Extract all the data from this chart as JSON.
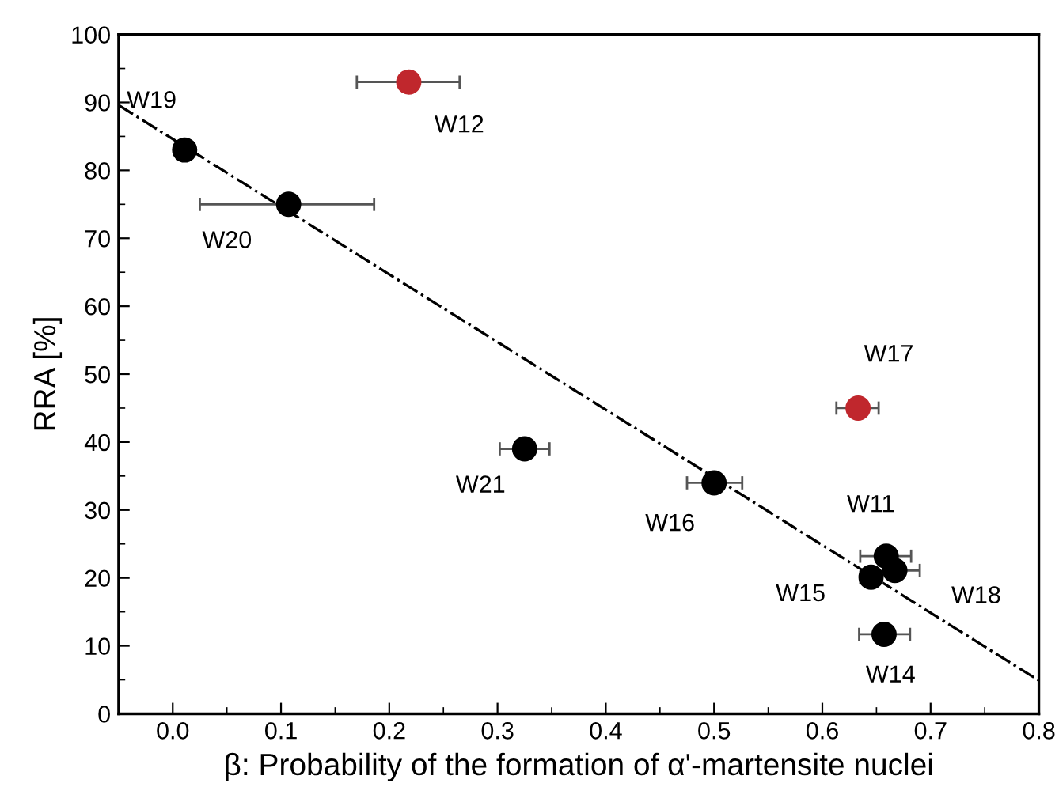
{
  "chart_data": {
    "type": "scatter",
    "xlabel": "β: Probability of the formation of α'-martensite nuclei",
    "ylabel": "RRA [%]",
    "xlim": [
      -0.05,
      0.8
    ],
    "xticks": [
      {
        "value": 0,
        "label": "0.0"
      },
      0.1,
      0.2,
      0.3,
      0.4,
      0.5,
      0.6,
      0.7,
      0.8
    ],
    "ylim": [
      0,
      100
    ],
    "yticks": [
      0,
      10,
      20,
      30,
      40,
      50,
      60,
      70,
      80,
      90,
      100
    ],
    "grid": false,
    "legend": false,
    "series": [
      {
        "marker": "circle",
        "color": "#000000",
        "x": [
          0.011,
          0.107,
          0.325,
          0.5,
          0.659,
          0.645,
          0.667,
          0.657
        ],
        "values": [
          83,
          75,
          39,
          34,
          23.2,
          20.1,
          21.1,
          11.7
        ],
        "xerrors": [
          null,
          [
            0.025,
            0.186
          ],
          [
            0.302,
            0.348
          ],
          [
            0.475,
            0.526
          ],
          [
            0.635,
            0.682
          ],
          [
            0.635,
            0.655
          ],
          [
            0.667,
            0.69
          ],
          [
            0.634,
            0.681
          ]
        ]
      },
      {
        "marker": "circle",
        "color": "#c0272d",
        "x": [
          0.218,
          0.633
        ],
        "values": [
          93,
          45
        ],
        "xerrors": [
          [
            0.17,
            0.265
          ],
          [
            0.613,
            0.652
          ]
        ]
      },
      {
        "type": "line",
        "color": "#000000",
        "x": [
          -0.05,
          0.8
        ],
        "values": [
          89.6,
          4.9
        ],
        "line_style": "dashdot"
      }
    ],
    "annotations": [
      {
        "text": "W19",
        "x": 0.011,
        "y": 83
      },
      {
        "text": "W12",
        "x": 0.218,
        "y": 93
      },
      {
        "text": "W20",
        "x": 0.107,
        "y": 75
      },
      {
        "text": "W21",
        "x": 0.325,
        "y": 39
      },
      {
        "text": "W16",
        "x": 0.5,
        "y": 34
      },
      {
        "text": "W17",
        "x": 0.633,
        "y": 45
      },
      {
        "text": "W11",
        "x": 0.659,
        "y": 23.2
      },
      {
        "text": "W15",
        "x": 0.645,
        "y": 20.1
      },
      {
        "text": "W18",
        "x": 0.667,
        "y": 21.1
      },
      {
        "text": "W14",
        "x": 0.657,
        "y": 11.7
      }
    ]
  }
}
